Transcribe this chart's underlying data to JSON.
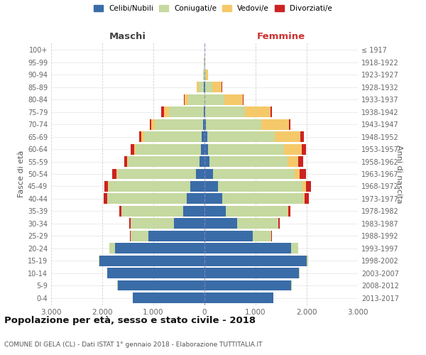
{
  "age_groups": [
    "0-4",
    "5-9",
    "10-14",
    "15-19",
    "20-24",
    "25-29",
    "30-34",
    "35-39",
    "40-44",
    "45-49",
    "50-54",
    "55-59",
    "60-64",
    "65-69",
    "70-74",
    "75-79",
    "80-84",
    "85-89",
    "90-94",
    "95-99",
    "100+"
  ],
  "birth_years": [
    "2013-2017",
    "2008-2012",
    "2003-2007",
    "1998-2002",
    "1993-1997",
    "1988-1992",
    "1983-1987",
    "1978-1982",
    "1973-1977",
    "1968-1972",
    "1963-1967",
    "1958-1962",
    "1953-1957",
    "1948-1952",
    "1943-1947",
    "1938-1942",
    "1933-1937",
    "1928-1932",
    "1923-1927",
    "1918-1922",
    "≤ 1917"
  ],
  "males": {
    "celibe": [
      1400,
      1700,
      1900,
      2050,
      1750,
      1100,
      600,
      420,
      350,
      280,
      160,
      100,
      70,
      50,
      30,
      15,
      5,
      8,
      4,
      2,
      1
    ],
    "coniugato": [
      0,
      2,
      5,
      20,
      110,
      350,
      850,
      1200,
      1550,
      1600,
      1550,
      1400,
      1280,
      1130,
      940,
      680,
      310,
      110,
      18,
      5,
      2
    ],
    "vedovo": [
      0,
      0,
      0,
      0,
      0,
      0,
      1,
      2,
      3,
      5,
      10,
      15,
      30,
      50,
      70,
      100,
      80,
      30,
      5,
      2,
      0
    ],
    "divorziato": [
      0,
      0,
      0,
      1,
      2,
      5,
      20,
      50,
      70,
      80,
      80,
      60,
      60,
      50,
      30,
      50,
      8,
      3,
      1,
      0,
      0
    ]
  },
  "females": {
    "nubile": [
      1350,
      1700,
      1850,
      2000,
      1700,
      950,
      640,
      420,
      350,
      270,
      160,
      100,
      70,
      50,
      25,
      15,
      5,
      8,
      4,
      2,
      1
    ],
    "coniugata": [
      0,
      2,
      5,
      25,
      130,
      350,
      800,
      1200,
      1580,
      1650,
      1600,
      1530,
      1480,
      1330,
      1080,
      780,
      380,
      140,
      28,
      8,
      3
    ],
    "vedova": [
      0,
      0,
      0,
      0,
      1,
      3,
      8,
      15,
      30,
      60,
      100,
      200,
      350,
      500,
      550,
      500,
      370,
      190,
      38,
      8,
      2
    ],
    "divorziata": [
      0,
      0,
      0,
      1,
      3,
      10,
      25,
      50,
      80,
      100,
      120,
      100,
      80,
      60,
      30,
      20,
      5,
      3,
      1,
      0,
      0
    ]
  },
  "colors": {
    "celibe": "#3a6ca8",
    "coniugato": "#c5d9a0",
    "vedovo": "#f5c96a",
    "divorziato": "#cc2222"
  },
  "xlim": 3000,
  "xtick_labels": [
    "3.000",
    "2.000",
    "1.000",
    "0",
    "1.000",
    "2.000",
    "3.000"
  ],
  "title": "Popolazione per età, sesso e stato civile - 2018",
  "subtitle": "COMUNE DI GELA (CL) - Dati ISTAT 1° gennaio 2018 - Elaborazione TUTTITALIA.IT",
  "ylabel_left": "Fasce di età",
  "ylabel_right": "Anni di nascita",
  "header_left": "Maschi",
  "header_right": "Femmine",
  "bg_color": "#ffffff",
  "grid_color": "#cccccc",
  "bar_height": 0.85
}
